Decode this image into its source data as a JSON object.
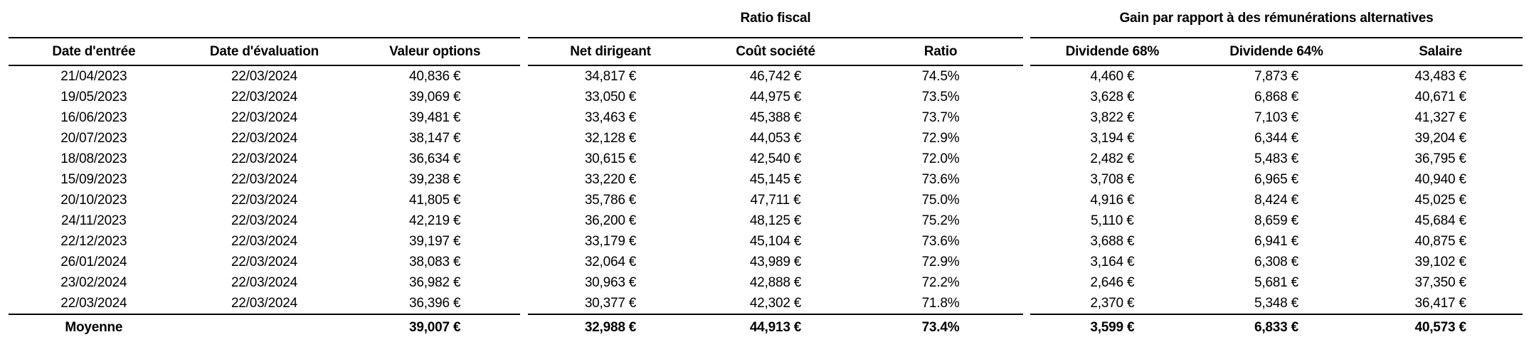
{
  "table": {
    "groups": [
      {
        "title": "",
        "columns": [
          "Date d'entrée",
          "Date d'évaluation",
          "Valeur options"
        ]
      },
      {
        "title": "Ratio fiscal",
        "columns": [
          "Net dirigeant",
          "Coût société",
          "Ratio"
        ]
      },
      {
        "title": "Gain par rapport à des rémunérations alternatives",
        "columns": [
          "Dividende 68%",
          "Dividende 64%",
          "Salaire"
        ]
      }
    ],
    "rows": [
      [
        "21/04/2023",
        "22/03/2024",
        "40,836 €",
        "34,817 €",
        "46,742 €",
        "74.5%",
        "4,460 €",
        "7,873 €",
        "43,483 €"
      ],
      [
        "19/05/2023",
        "22/03/2024",
        "39,069 €",
        "33,050 €",
        "44,975 €",
        "73.5%",
        "3,628 €",
        "6,868 €",
        "40,671 €"
      ],
      [
        "16/06/2023",
        "22/03/2024",
        "39,481 €",
        "33,463 €",
        "45,388 €",
        "73.7%",
        "3,822 €",
        "7,103 €",
        "41,327 €"
      ],
      [
        "20/07/2023",
        "22/03/2024",
        "38,147 €",
        "32,128 €",
        "44,053 €",
        "72.9%",
        "3,194 €",
        "6,344 €",
        "39,204 €"
      ],
      [
        "18/08/2023",
        "22/03/2024",
        "36,634 €",
        "30,615 €",
        "42,540 €",
        "72.0%",
        "2,482 €",
        "5,483 €",
        "36,795 €"
      ],
      [
        "15/09/2023",
        "22/03/2024",
        "39,238 €",
        "33,220 €",
        "45,145 €",
        "73.6%",
        "3,708 €",
        "6,965 €",
        "40,940 €"
      ],
      [
        "20/10/2023",
        "22/03/2024",
        "41,805 €",
        "35,786 €",
        "47,711 €",
        "75.0%",
        "4,916 €",
        "8,424 €",
        "45,025 €"
      ],
      [
        "24/11/2023",
        "22/03/2024",
        "42,219 €",
        "36,200 €",
        "48,125 €",
        "75.2%",
        "5,110 €",
        "8,659 €",
        "45,684 €"
      ],
      [
        "22/12/2023",
        "22/03/2024",
        "39,197 €",
        "33,179 €",
        "45,104 €",
        "73.6%",
        "3,688 €",
        "6,941 €",
        "40,875 €"
      ],
      [
        "26/01/2024",
        "22/03/2024",
        "38,083 €",
        "32,064 €",
        "43,989 €",
        "72.9%",
        "3,164 €",
        "6,308 €",
        "39,102 €"
      ],
      [
        "23/02/2024",
        "22/03/2024",
        "36,982 €",
        "30,963 €",
        "42,888 €",
        "72.2%",
        "2,646 €",
        "5,681 €",
        "37,350 €"
      ],
      [
        "22/03/2024",
        "22/03/2024",
        "36,396 €",
        "30,377 €",
        "42,302 €",
        "71.8%",
        "2,370 €",
        "5,348 €",
        "36,417 €"
      ]
    ],
    "footer_cells": [
      "Moyenne",
      "",
      "39,007 €",
      "32,988 €",
      "44,913 €",
      "73.4%",
      "3,599 €",
      "6,833 €",
      "40,573 €"
    ]
  },
  "colors": {
    "background": "#ffffff",
    "text": "#000000",
    "rule": "#000000"
  }
}
